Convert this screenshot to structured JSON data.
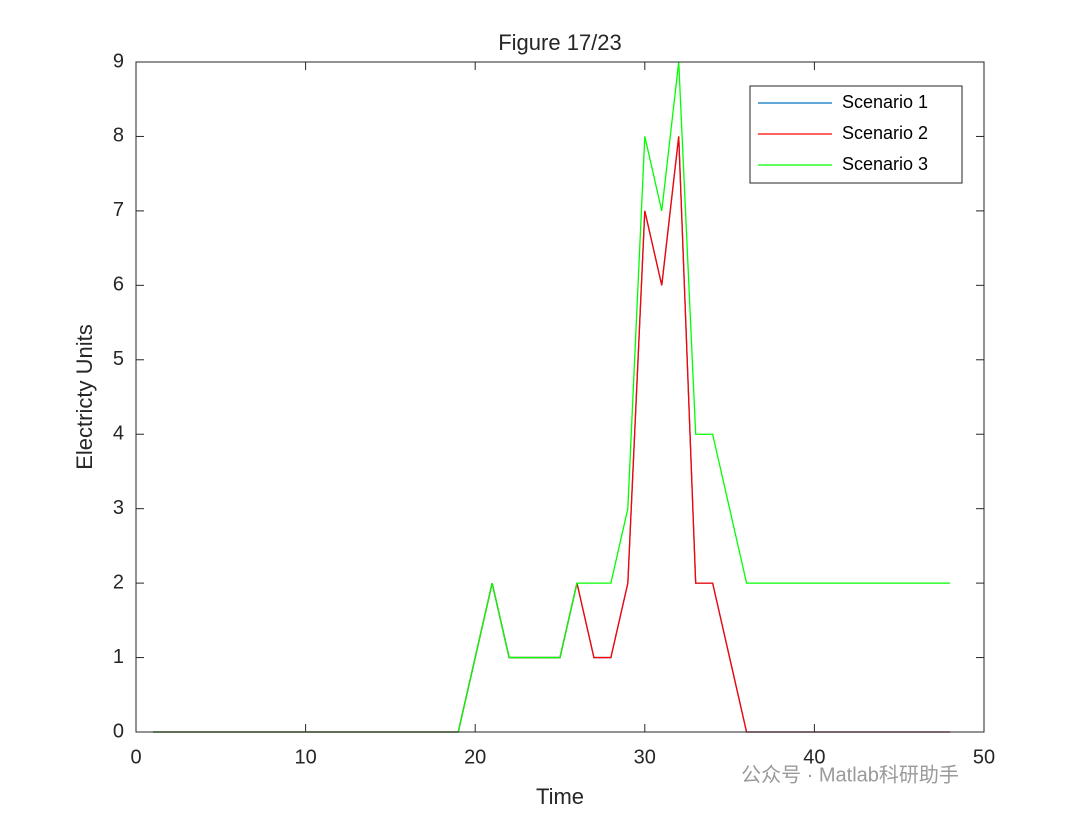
{
  "chart_data": {
    "type": "line",
    "title": "Figure 17/23",
    "x_label": "Time",
    "y_label": "Electricty Units",
    "x": [
      1,
      2,
      3,
      4,
      5,
      6,
      7,
      8,
      9,
      10,
      11,
      12,
      13,
      14,
      15,
      16,
      17,
      18,
      19,
      20,
      21,
      22,
      23,
      24,
      25,
      26,
      27,
      28,
      29,
      30,
      31,
      32,
      33,
      34,
      35,
      36,
      37,
      38,
      39,
      40,
      41,
      42,
      43,
      44,
      45,
      46,
      47,
      48
    ],
    "series": [
      {
        "name": "Scenario 1",
        "color": "#0072BD",
        "values": [
          0,
          0,
          0,
          0,
          0,
          0,
          0,
          0,
          0,
          0,
          0,
          0,
          0,
          0,
          0,
          0,
          0,
          0,
          0,
          1,
          2,
          1,
          1,
          1,
          1,
          2,
          1,
          1,
          2,
          7,
          6,
          8,
          2,
          2,
          1,
          0,
          0,
          0,
          0,
          0,
          0,
          0,
          0,
          0,
          0,
          0,
          0,
          0
        ]
      },
      {
        "name": "Scenario 2",
        "color": "#FF0000",
        "values": [
          0,
          0,
          0,
          0,
          0,
          0,
          0,
          0,
          0,
          0,
          0,
          0,
          0,
          0,
          0,
          0,
          0,
          0,
          0,
          1,
          2,
          1,
          1,
          1,
          1,
          2,
          1,
          1,
          2,
          7,
          6,
          8,
          2,
          2,
          1,
          0,
          0,
          0,
          0,
          0,
          0,
          0,
          0,
          0,
          0,
          0,
          0,
          0
        ]
      },
      {
        "name": "Scenario 3",
        "color": "#00FF00",
        "values": [
          0,
          0,
          0,
          0,
          0,
          0,
          0,
          0,
          0,
          0,
          0,
          0,
          0,
          0,
          0,
          0,
          0,
          0,
          0,
          1,
          2,
          1,
          1,
          1,
          1,
          2,
          2,
          2,
          3,
          8,
          7,
          9,
          4,
          4,
          3,
          2,
          2,
          2,
          2,
          2,
          2,
          2,
          2,
          2,
          2,
          2,
          2,
          2
        ]
      }
    ],
    "xlim": [
      0,
      50
    ],
    "xticks": [
      0,
      10,
      20,
      30,
      40,
      50
    ],
    "ylim": [
      0,
      9
    ],
    "yticks": [
      0,
      1,
      2,
      3,
      4,
      5,
      6,
      7,
      8,
      9
    ],
    "grid": false,
    "legend": "northeast"
  },
  "watermark": "公众号 · Matlab科研助手"
}
